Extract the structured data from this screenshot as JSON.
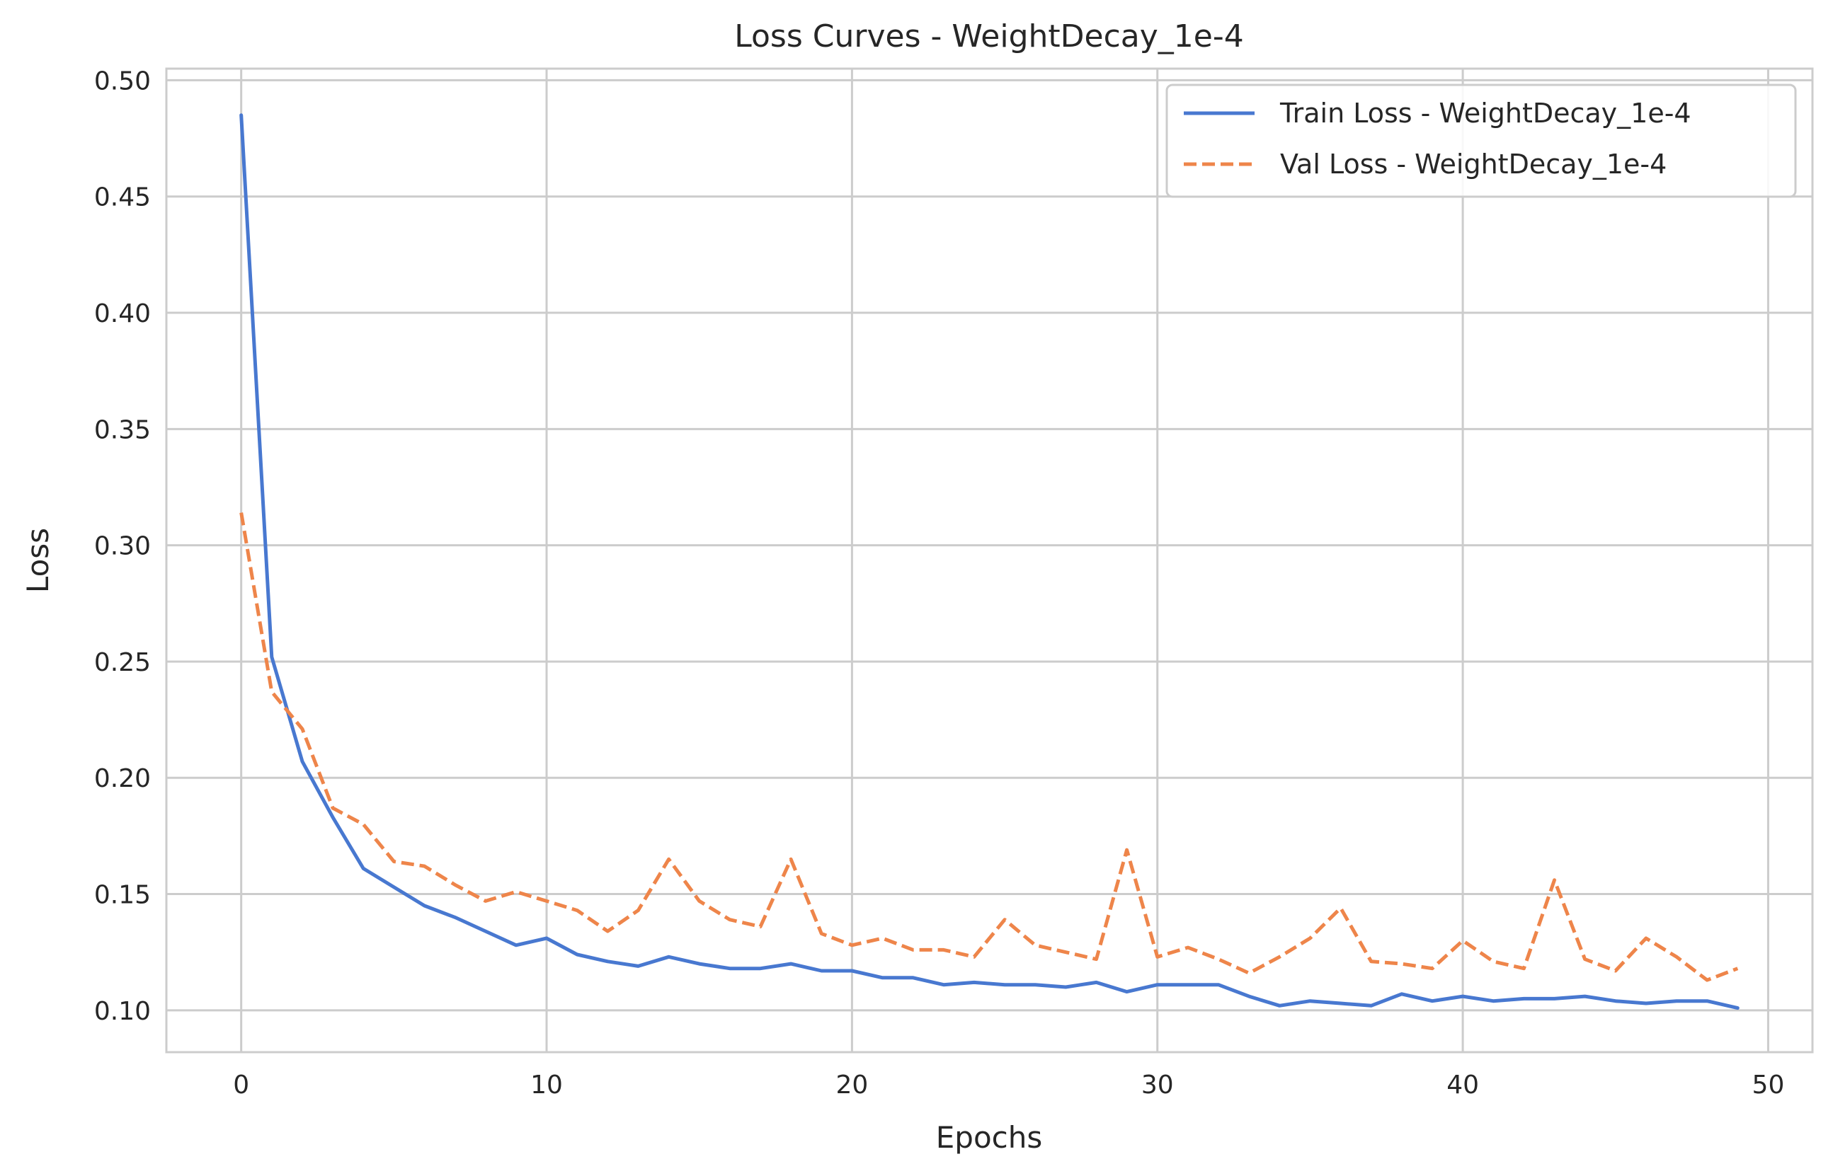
{
  "chart_data": {
    "type": "line",
    "title": "Loss Curves - WeightDecay_1e-4",
    "xlabel": "Epochs",
    "ylabel": "Loss",
    "xlim": [
      -2.45,
      51.45
    ],
    "ylim": [
      0.082,
      0.505
    ],
    "xticks": [
      0,
      10,
      20,
      30,
      40,
      50
    ],
    "yticks": [
      0.1,
      0.15,
      0.2,
      0.25,
      0.3,
      0.35,
      0.4,
      0.45,
      0.5
    ],
    "ytick_labels": [
      "0.10",
      "0.15",
      "0.20",
      "0.25",
      "0.30",
      "0.35",
      "0.40",
      "0.45",
      "0.50"
    ],
    "grid": true,
    "legend_position": "upper-right",
    "x": [
      0,
      1,
      2,
      3,
      4,
      5,
      6,
      7,
      8,
      9,
      10,
      11,
      12,
      13,
      14,
      15,
      16,
      17,
      18,
      19,
      20,
      21,
      22,
      23,
      24,
      25,
      26,
      27,
      28,
      29,
      30,
      31,
      32,
      33,
      34,
      35,
      36,
      37,
      38,
      39,
      40,
      41,
      42,
      43,
      44,
      45,
      46,
      47,
      48,
      49
    ],
    "series": [
      {
        "name": "Train Loss - WeightDecay_1e-4",
        "color": "#4878d0",
        "style": "solid",
        "values": [
          0.485,
          0.252,
          0.207,
          0.183,
          0.161,
          0.153,
          0.145,
          0.14,
          0.134,
          0.128,
          0.131,
          0.124,
          0.121,
          0.119,
          0.123,
          0.12,
          0.118,
          0.118,
          0.12,
          0.117,
          0.117,
          0.114,
          0.114,
          0.111,
          0.112,
          0.111,
          0.111,
          0.11,
          0.112,
          0.108,
          0.111,
          0.111,
          0.111,
          0.106,
          0.102,
          0.104,
          0.103,
          0.102,
          0.107,
          0.104,
          0.106,
          0.104,
          0.105,
          0.105,
          0.106,
          0.104,
          0.103,
          0.104,
          0.104,
          0.101
        ]
      },
      {
        "name": "Val Loss - WeightDecay_1e-4",
        "color": "#ee854a",
        "style": "dashed",
        "values": [
          0.314,
          0.237,
          0.221,
          0.187,
          0.18,
          0.164,
          0.162,
          0.154,
          0.147,
          0.151,
          0.147,
          0.143,
          0.134,
          0.143,
          0.165,
          0.147,
          0.139,
          0.136,
          0.165,
          0.133,
          0.128,
          0.131,
          0.126,
          0.126,
          0.123,
          0.139,
          0.128,
          0.125,
          0.122,
          0.169,
          0.123,
          0.127,
          0.122,
          0.116,
          0.123,
          0.131,
          0.144,
          0.121,
          0.12,
          0.118,
          0.13,
          0.121,
          0.118,
          0.156,
          0.122,
          0.117,
          0.131,
          0.123,
          0.113,
          0.118
        ]
      }
    ]
  }
}
